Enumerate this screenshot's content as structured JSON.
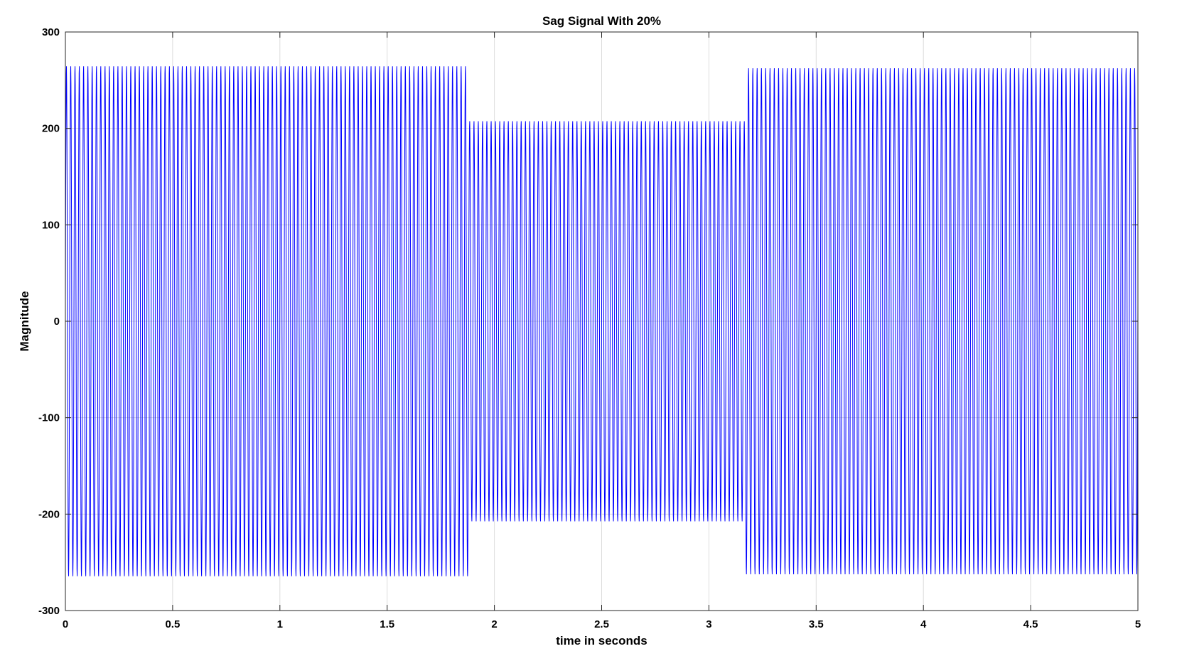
{
  "chart_data": {
    "type": "line",
    "title": "Sag Signal With 20%",
    "xlabel": "time in seconds",
    "ylabel": "Magnitude",
    "xlim": [
      0,
      5
    ],
    "ylim": [
      -300,
      300
    ],
    "grid": true,
    "x_ticks": [
      0,
      0.5,
      1,
      1.5,
      2,
      2.5,
      3,
      3.5,
      4,
      4.5,
      5
    ],
    "y_ticks": [
      -300,
      -200,
      -100,
      0,
      100,
      200,
      300
    ],
    "x_tick_labels": [
      "0",
      "0.5",
      "1",
      "1.5",
      "2",
      "2.5",
      "3",
      "3.5",
      "4",
      "4.5",
      "5"
    ],
    "y_tick_labels": [
      "-300",
      "-200",
      "-100",
      "0",
      "100",
      "200",
      "300"
    ],
    "series": [
      {
        "color": "#0000ff",
        "signal": {
          "kind": "sinusoid",
          "frequency_hz": 50,
          "sample_interval_s": 0.001,
          "start_value": 18,
          "segments": [
            {
              "t_start": 0,
              "t_end": 1.88,
              "amplitude": 265
            },
            {
              "t_start": 1.88,
              "t_end": 3.17,
              "amplitude": 208
            },
            {
              "t_start": 3.17,
              "t_end": 5,
              "amplitude": 263
            }
          ]
        }
      }
    ]
  }
}
